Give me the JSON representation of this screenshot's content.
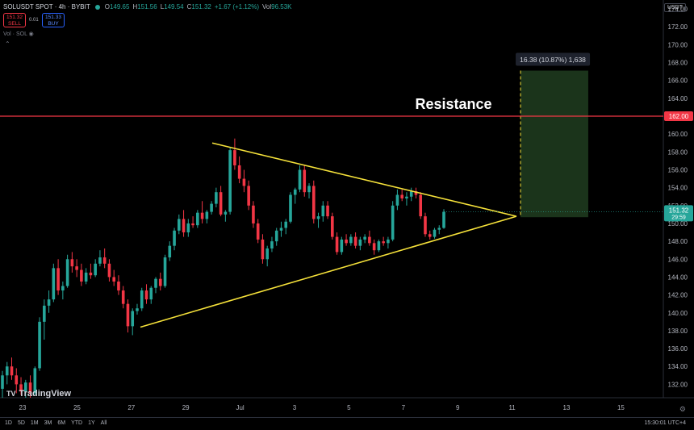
{
  "header": {
    "symbol": "SOLUSDT SPOT · 4h · BYBIT",
    "ohlc": [
      {
        "k": "O",
        "v": "149.65"
      },
      {
        "k": "H",
        "v": "151.56"
      },
      {
        "k": "L",
        "v": "149.54"
      },
      {
        "k": "C",
        "v": "151.32"
      },
      {
        "k": "",
        "v": "+1.67 (+1.12%)"
      },
      {
        "k": "Vol",
        "v": "96.53K"
      }
    ],
    "sell_price": "151.32",
    "sell_label": "SELL",
    "spread": "0.01",
    "buy_price": "151.33",
    "buy_label": "BUY",
    "volume_label": "Vol · SOL",
    "currency": "USDT"
  },
  "logo": "TradingView",
  "timeframes": [
    "1D",
    "5D",
    "1M",
    "3M",
    "6M",
    "YTD",
    "1Y",
    "All"
  ],
  "clock": "15:30:01 UTC+4",
  "colors": {
    "up": "#26a69a",
    "down": "#f23645",
    "triangle": "#f5e13a",
    "resistance": "#f23645",
    "target_fill": "#1e3a1e"
  },
  "chart_data": {
    "type": "candlestick",
    "y_ticks": [
      "132.00",
      "134.00",
      "136.00",
      "138.00",
      "140.00",
      "142.00",
      "144.00",
      "146.00",
      "148.00",
      "150.00",
      "152.00",
      "154.00",
      "156.00",
      "158.00",
      "160.00",
      "162.00",
      "164.00",
      "166.00",
      "168.00",
      "170.00",
      "172.00",
      "174.00"
    ],
    "x_ticks": [
      "23",
      "25",
      "27",
      "29",
      "Jul",
      "3",
      "5",
      "7",
      "9",
      "11",
      "13",
      "15"
    ],
    "ylim": [
      130.5,
      175
    ],
    "current_price": "151.32",
    "countdown": "29:59",
    "resistance": {
      "value": 162.0,
      "price_label": "162.00",
      "text": "Resistance"
    },
    "projection_label": "16.38 (10.87%) 1,638",
    "projection": {
      "from": 150.7,
      "to": 167.1
    },
    "triangle": {
      "upper": [
        [
          29.3,
          159.0
        ],
        [
          11.1,
          150.8
        ]
      ],
      "lower": [
        [
          27.5,
          138.4
        ],
        [
          11.1,
          150.8
        ]
      ]
    },
    "candles": [
      [
        131.5,
        133.5,
        130.5,
        133.0
      ],
      [
        133.0,
        134.5,
        132.0,
        134.0
      ],
      [
        134.0,
        135.0,
        132.5,
        133.0
      ],
      [
        133.0,
        133.8,
        131.0,
        132.0
      ],
      [
        132.0,
        132.8,
        130.8,
        131.2
      ],
      [
        131.2,
        132.5,
        130.5,
        132.2
      ],
      [
        132.2,
        133.0,
        130.5,
        131.0
      ],
      [
        131.0,
        134.0,
        130.8,
        133.8
      ],
      [
        133.8,
        139.5,
        133.5,
        139.0
      ],
      [
        139.0,
        141.5,
        137.0,
        140.8
      ],
      [
        140.8,
        142.5,
        140.0,
        141.5
      ],
      [
        141.5,
        145.5,
        141.2,
        145.0
      ],
      [
        145.0,
        146.0,
        142.0,
        142.5
      ],
      [
        142.5,
        143.5,
        141.5,
        143.0
      ],
      [
        143.0,
        146.5,
        142.8,
        146.0
      ],
      [
        146.0,
        146.8,
        144.5,
        145.2
      ],
      [
        145.2,
        146.0,
        144.0,
        144.8
      ],
      [
        144.8,
        145.5,
        143.0,
        143.5
      ],
      [
        143.5,
        145.0,
        143.2,
        144.5
      ],
      [
        144.5,
        145.5,
        143.8,
        144.2
      ],
      [
        144.2,
        146.0,
        144.0,
        145.5
      ],
      [
        145.5,
        147.0,
        145.2,
        146.2
      ],
      [
        146.2,
        147.2,
        145.0,
        145.5
      ],
      [
        145.5,
        146.0,
        143.5,
        144.0
      ],
      [
        144.0,
        144.8,
        143.0,
        143.5
      ],
      [
        143.5,
        144.2,
        142.0,
        142.5
      ],
      [
        142.5,
        143.0,
        140.5,
        141.0
      ],
      [
        141.0,
        141.5,
        137.8,
        138.5
      ],
      [
        138.5,
        140.5,
        137.5,
        140.2
      ],
      [
        140.2,
        141.0,
        139.8,
        140.5
      ],
      [
        140.5,
        142.8,
        140.2,
        142.5
      ],
      [
        142.5,
        143.2,
        141.0,
        141.5
      ],
      [
        141.5,
        143.0,
        141.0,
        142.8
      ],
      [
        142.8,
        144.0,
        142.2,
        143.8
      ],
      [
        143.8,
        144.5,
        142.5,
        143.0
      ],
      [
        143.0,
        146.5,
        142.8,
        146.2
      ],
      [
        146.2,
        148.0,
        145.8,
        147.5
      ],
      [
        147.5,
        149.5,
        147.0,
        149.2
      ],
      [
        149.2,
        151.0,
        148.8,
        150.5
      ],
      [
        150.5,
        151.5,
        148.5,
        149.0
      ],
      [
        149.0,
        150.5,
        148.5,
        150.0
      ],
      [
        150.0,
        150.8,
        149.5,
        149.8
      ],
      [
        149.8,
        151.5,
        149.5,
        151.2
      ],
      [
        151.2,
        152.5,
        150.0,
        150.5
      ],
      [
        150.5,
        151.5,
        150.0,
        151.3
      ],
      [
        151.3,
        152.5,
        151.0,
        152.2
      ],
      [
        152.2,
        154.0,
        151.8,
        153.5
      ],
      [
        153.5,
        154.2,
        150.8,
        151.0
      ],
      [
        151.0,
        151.5,
        150.2,
        151.3
      ],
      [
        151.3,
        158.5,
        151.0,
        158.2
      ],
      [
        158.2,
        159.5,
        156.0,
        156.5
      ],
      [
        156.5,
        157.5,
        154.5,
        155.0
      ],
      [
        155.0,
        156.0,
        153.5,
        154.2
      ],
      [
        154.2,
        154.8,
        151.5,
        152.0
      ],
      [
        152.0,
        152.5,
        149.5,
        150.0
      ],
      [
        150.0,
        150.5,
        147.8,
        148.2
      ],
      [
        148.2,
        148.8,
        145.5,
        146.0
      ],
      [
        146.0,
        147.5,
        145.2,
        147.2
      ],
      [
        147.2,
        148.5,
        146.8,
        148.0
      ],
      [
        148.0,
        149.5,
        147.5,
        149.2
      ],
      [
        149.2,
        150.2,
        148.5,
        149.5
      ],
      [
        149.5,
        150.5,
        148.8,
        150.2
      ],
      [
        150.2,
        153.5,
        150.0,
        153.2
      ],
      [
        153.2,
        154.0,
        152.2,
        153.8
      ],
      [
        153.8,
        156.5,
        153.5,
        156.0
      ],
      [
        156.0,
        156.5,
        153.0,
        153.5
      ],
      [
        153.5,
        154.5,
        152.8,
        154.2
      ],
      [
        154.2,
        154.8,
        150.0,
        150.5
      ],
      [
        150.5,
        151.2,
        149.5,
        150.8
      ],
      [
        150.8,
        152.5,
        150.2,
        152.0
      ],
      [
        152.0,
        152.5,
        150.5,
        150.8
      ],
      [
        150.8,
        151.2,
        148.2,
        148.5
      ],
      [
        148.5,
        149.0,
        146.5,
        146.8
      ],
      [
        146.8,
        148.5,
        146.5,
        148.2
      ],
      [
        148.2,
        148.8,
        147.5,
        147.8
      ],
      [
        147.8,
        148.8,
        147.5,
        148.5
      ],
      [
        148.5,
        149.0,
        147.2,
        147.5
      ],
      [
        147.5,
        148.5,
        147.0,
        148.2
      ],
      [
        148.2,
        148.8,
        147.8,
        148.5
      ],
      [
        148.5,
        149.2,
        147.5,
        147.8
      ],
      [
        147.8,
        148.2,
        146.5,
        147.0
      ],
      [
        147.0,
        148.2,
        146.8,
        148.0
      ],
      [
        148.0,
        148.5,
        147.5,
        147.8
      ],
      [
        147.8,
        148.5,
        147.2,
        148.2
      ],
      [
        148.2,
        152.5,
        148.0,
        152.0
      ],
      [
        152.0,
        153.8,
        151.5,
        153.2
      ],
      [
        153.2,
        153.8,
        152.5,
        152.8
      ],
      [
        152.8,
        153.5,
        152.0,
        153.0
      ],
      [
        153.0,
        154.0,
        152.5,
        153.6
      ],
      [
        153.6,
        154.0,
        152.8,
        153.2
      ],
      [
        153.2,
        153.5,
        150.5,
        150.8
      ],
      [
        150.8,
        151.2,
        148.5,
        148.8
      ],
      [
        148.8,
        149.2,
        148.2,
        148.5
      ],
      [
        148.5,
        149.5,
        148.3,
        149.3
      ],
      [
        149.3,
        149.8,
        148.8,
        149.5
      ],
      [
        149.5,
        151.6,
        149.4,
        151.3
      ]
    ]
  }
}
